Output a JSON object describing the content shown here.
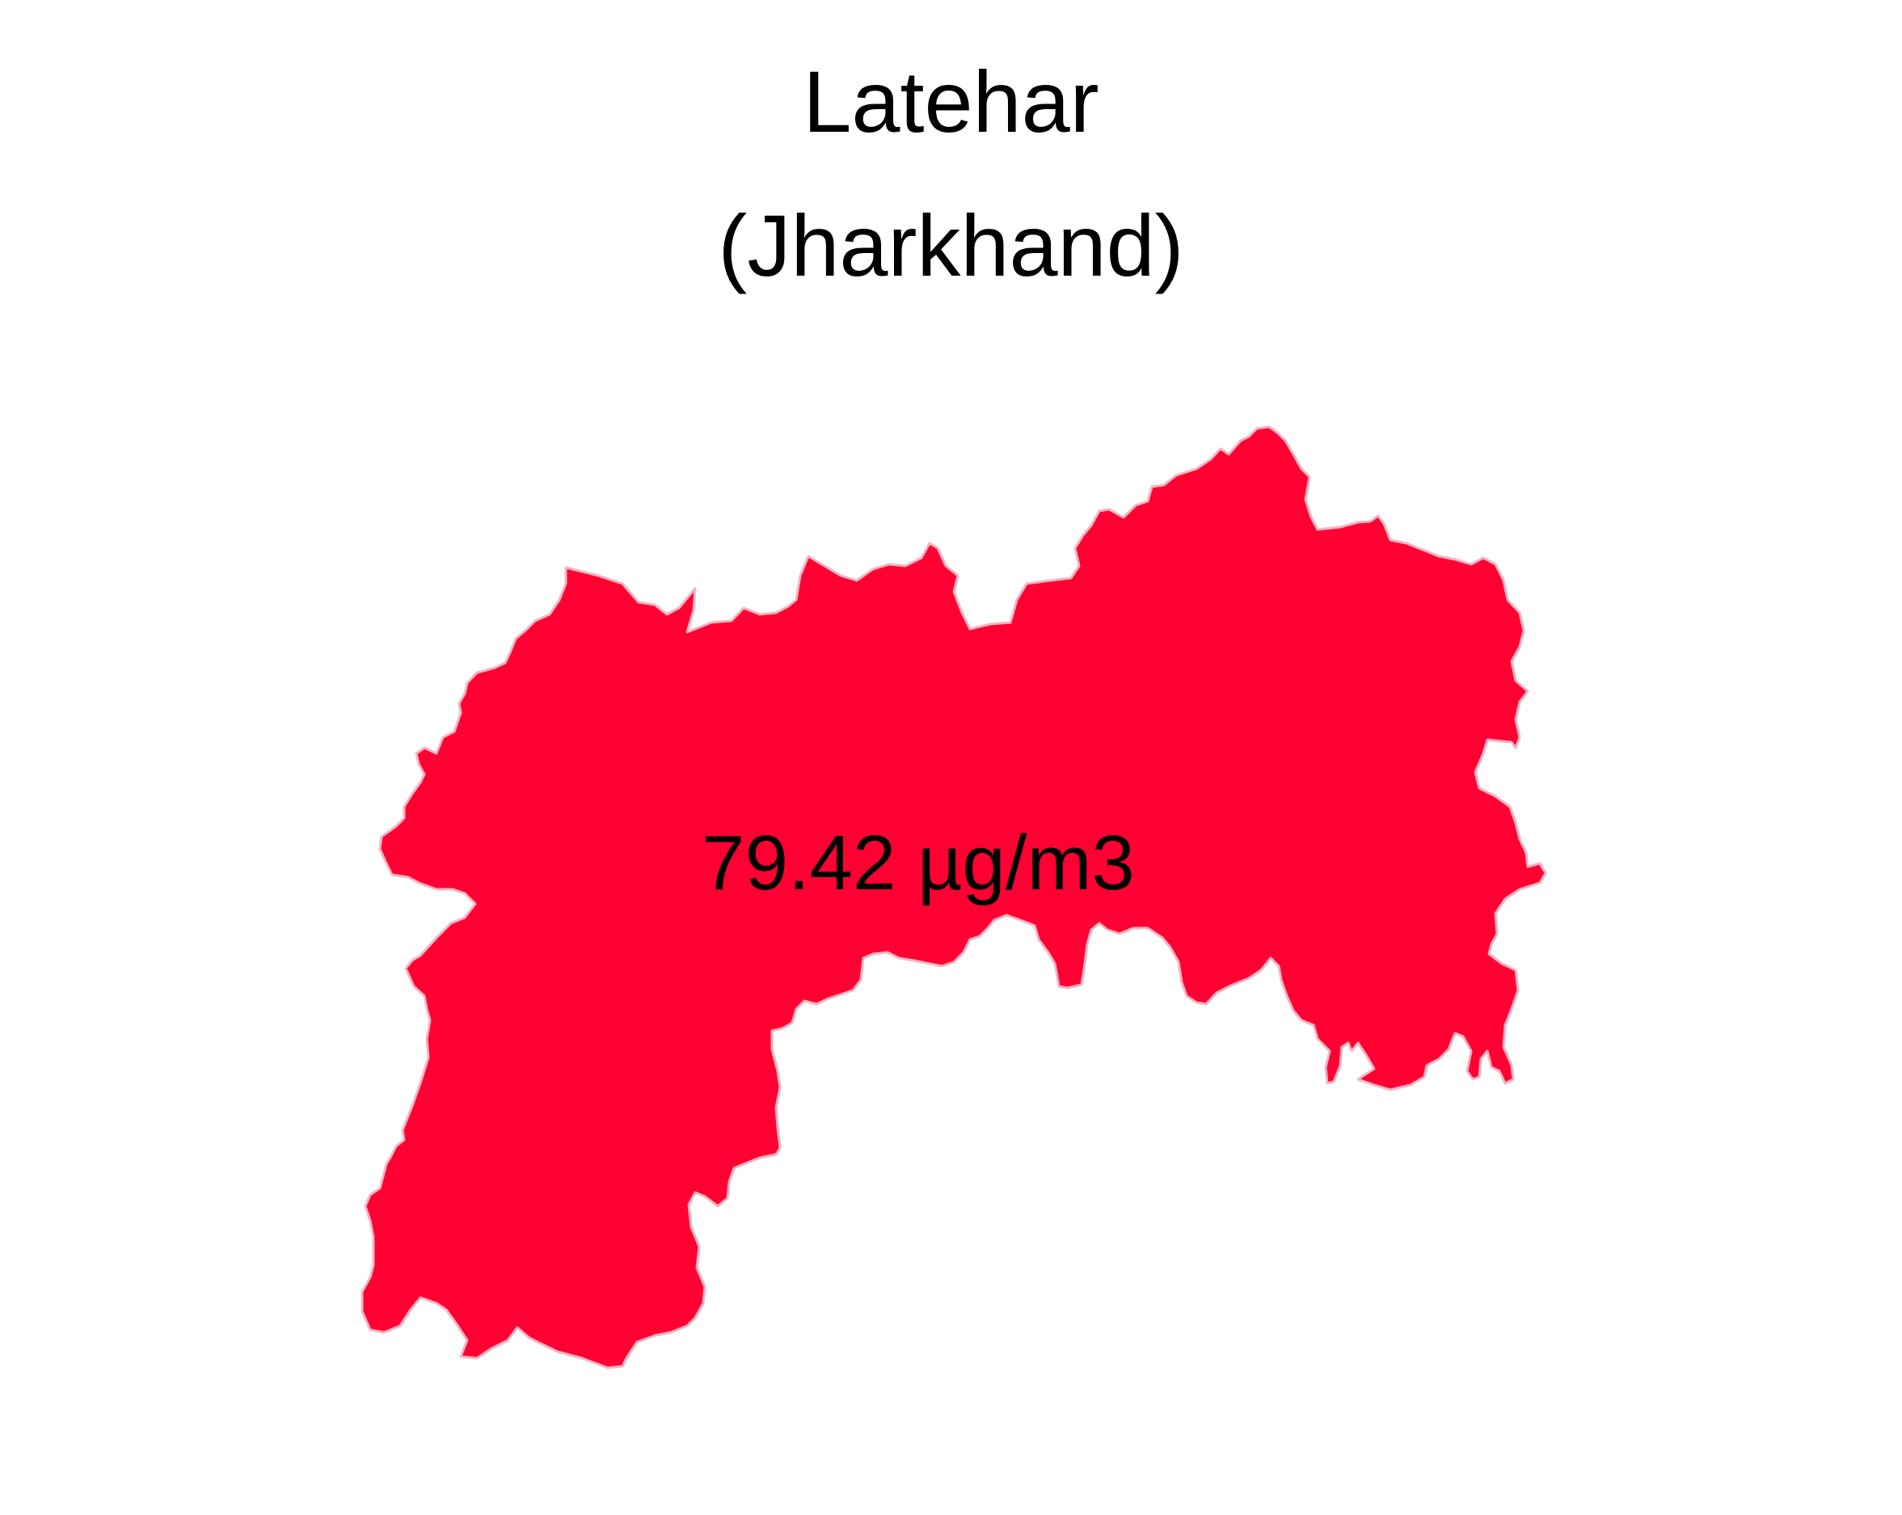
{
  "map": {
    "title_line1": "Latehar",
    "title_line2": "(Jharkhand)",
    "region": {
      "name": "Latehar",
      "value_label": "79.42 µg/m3",
      "fill_color": "#ff0033",
      "border_color": "#f5b3c0"
    }
  }
}
